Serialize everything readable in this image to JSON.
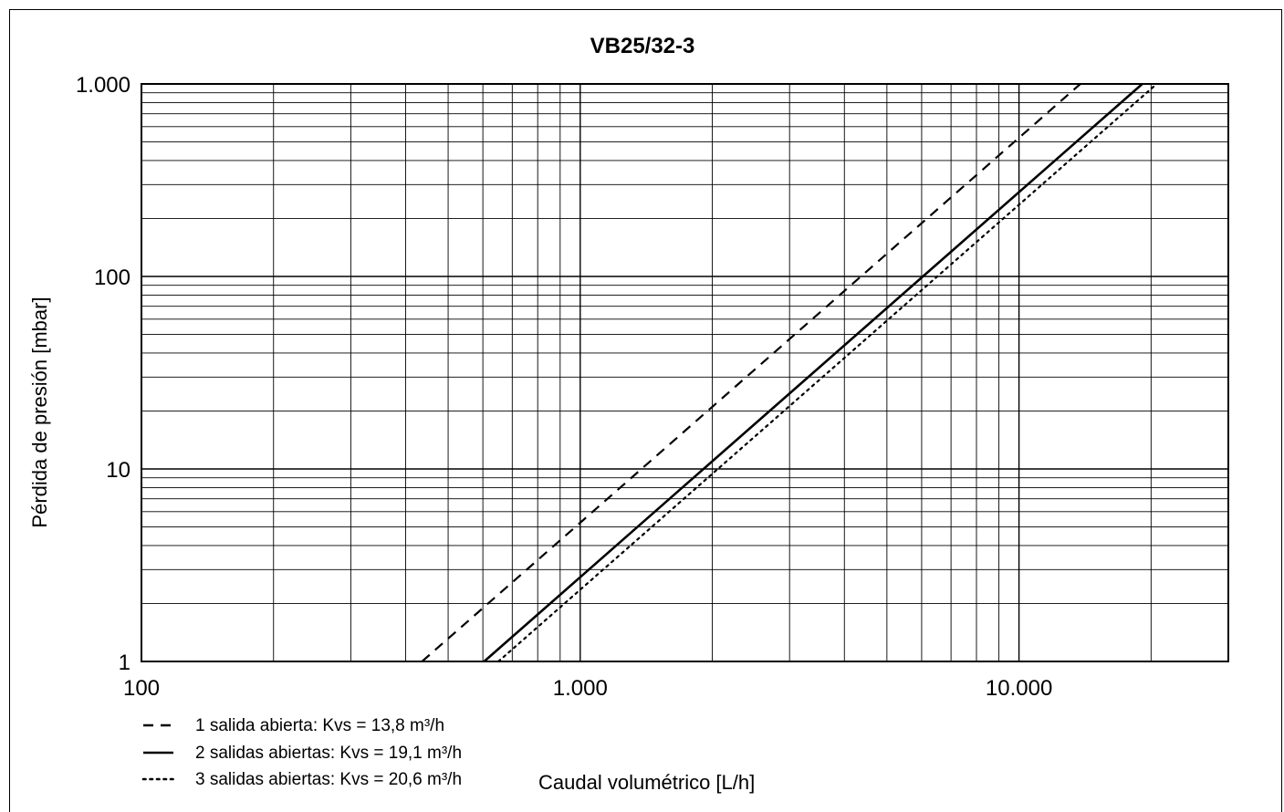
{
  "chart_data": {
    "type": "line",
    "title": "VB25/32-3",
    "xlabel": "Caudal volumétrico  [L/h]",
    "ylabel": "Pérdida de presión  [mbar]",
    "xscale": "log",
    "yscale": "log",
    "xlim": [
      100,
      30000
    ],
    "ylim": [
      1,
      1000
    ],
    "x_ticks": [
      {
        "value": 100,
        "label": "100"
      },
      {
        "value": 1000,
        "label": "1.000"
      },
      {
        "value": 10000,
        "label": "10.000"
      }
    ],
    "y_ticks": [
      {
        "value": 1,
        "label": "1"
      },
      {
        "value": 10,
        "label": "10"
      },
      {
        "value": 100,
        "label": "100"
      },
      {
        "value": 1000,
        "label": "1.000"
      }
    ],
    "grid": true,
    "legend_position": "bottom-left",
    "series": [
      {
        "name": "1 salida abierta: Kvs =  13,8 m³/h",
        "style": "dashed",
        "kvs": 13.8,
        "x": [
          436,
          13800
        ],
        "y": [
          1,
          1000
        ]
      },
      {
        "name": "2 salidas abiertas: Kvs =  19,1 m³/h",
        "style": "solid",
        "kvs": 19.1,
        "x": [
          604,
          19100
        ],
        "y": [
          1,
          1000
        ]
      },
      {
        "name": "3 salidas abiertas: Kvs =  20,6 m³/h",
        "style": "dotted",
        "kvs": 20.6,
        "x": [
          651,
          20600
        ],
        "y": [
          1,
          1000
        ]
      }
    ]
  }
}
